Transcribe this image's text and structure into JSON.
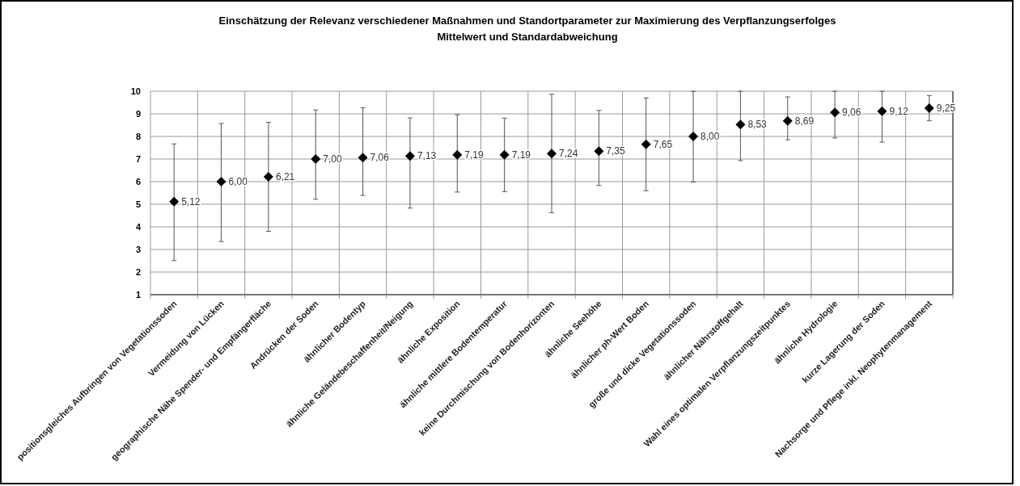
{
  "chart_data": {
    "type": "scatter",
    "title": "Einschätzung der Relevanz verschiedener Maßnahmen und Standortparameter zur Maximierung des Verpflanzungserfolges",
    "subtitle": "Mittelwert und Standardabweichung",
    "categories": [
      "positionsgleiches Aufbringen von Vegetationssoden",
      "Vermeidung von Lücken",
      "geographische Nähe Spender- und Empfängerfläche",
      "Andrücken der Soden",
      "ähnlicher Bodentyp",
      "ähnliche Geländebeschaffenheit/Neigung",
      "ähnliche Exposition",
      "ähnliche mittlere Bodentemperatur",
      "keine Durchmischung von Bodenhorizonten",
      "ähnliche Seehöhe",
      "ähnlicher ph-Wert Boden",
      "große und dicke Vegetationssoden",
      "ähnlicher Nährstoffgehalt",
      "Wahl eines optimalen Verpflanzungszeitpunktes",
      "ähnliche Hydrologie",
      "kurze Lagerung der Soden",
      "Nachsorge und Pflege inkl. Neophytenmanagement"
    ],
    "series": [
      {
        "color": "#000000",
        "values": [
          5.12,
          6.0,
          6.21,
          7.0,
          7.06,
          7.13,
          7.19,
          7.19,
          7.24,
          7.35,
          7.65,
          8.0,
          8.53,
          8.69,
          9.06,
          9.12,
          9.25
        ],
        "value_labels": [
          "5,12",
          "6,00",
          "6,21",
          "7,00",
          "7,06",
          "7,13",
          "7,19",
          "7,19",
          "7,24",
          "7,35",
          "7,65",
          "8,00",
          "8,53",
          "8,69",
          "9,06",
          "9,12",
          "9,25"
        ],
        "errors": [
          [
            2.51,
            7.67
          ],
          [
            3.35,
            8.57
          ],
          [
            3.8,
            8.62
          ],
          [
            5.22,
            9.17
          ],
          [
            5.39,
            9.27
          ],
          [
            4.83,
            8.82
          ],
          [
            5.54,
            8.96
          ],
          [
            5.56,
            8.81
          ],
          [
            4.63,
            9.87
          ],
          [
            5.83,
            9.15
          ],
          [
            5.6,
            9.7
          ],
          [
            5.98,
            10
          ],
          [
            6.93,
            10
          ],
          [
            7.85,
            9.75
          ],
          [
            7.93,
            10
          ],
          [
            7.75,
            10
          ],
          [
            8.69,
            9.81
          ]
        ]
      }
    ],
    "ylim": [
      1,
      10
    ],
    "yticks": [
      1,
      2,
      3,
      4,
      5,
      6,
      7,
      8,
      9,
      10
    ],
    "grid": true,
    "marker": "diamond"
  }
}
